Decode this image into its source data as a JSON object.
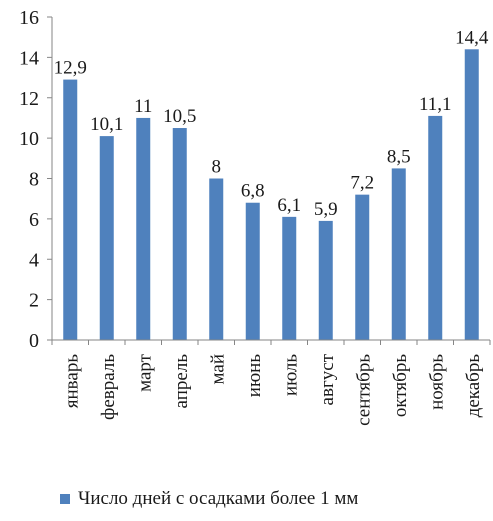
{
  "chart_data": {
    "type": "bar",
    "categories": [
      "январь",
      "февраль",
      "март",
      "апрель",
      "май",
      "июнь",
      "июль",
      "август",
      "сентябрь",
      "октябрь",
      "ноябрь",
      "декабрь"
    ],
    "values": [
      12.9,
      10.1,
      11,
      10.5,
      8,
      6.8,
      6.1,
      5.9,
      7.2,
      8.5,
      11.1,
      14.4
    ],
    "data_labels": [
      "12,9",
      "10,1",
      "11",
      "10,5",
      "8",
      "6,8",
      "6,1",
      "5,9",
      "7,2",
      "8,5",
      "11,1",
      "14,4"
    ],
    "series": [
      {
        "name": "Число дней с  осадками более 1 мм"
      }
    ],
    "y_ticks": [
      0,
      2,
      4,
      6,
      8,
      10,
      12,
      14,
      16
    ],
    "ylim": [
      0,
      16
    ],
    "grid": false,
    "legend_position": "bottom",
    "bar_color": "#4f81bd"
  }
}
